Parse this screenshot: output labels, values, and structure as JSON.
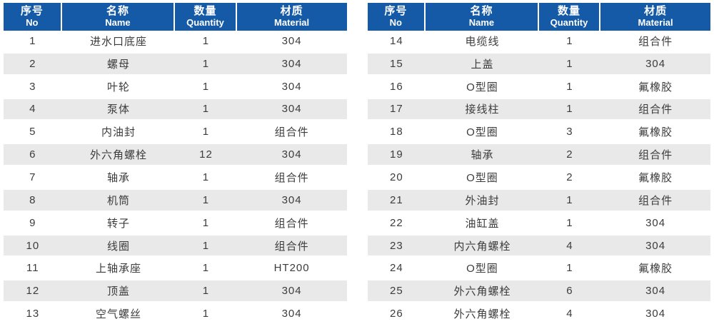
{
  "columns": [
    {
      "zh": "序号",
      "en": "No"
    },
    {
      "zh": "名称",
      "en": "Name"
    },
    {
      "zh": "数量",
      "en": "Quantity"
    },
    {
      "zh": "材质",
      "en": "Material"
    }
  ],
  "tables": {
    "left": {
      "rows": [
        [
          "1",
          "进水口底座",
          "1",
          "304"
        ],
        [
          "2",
          "螺母",
          "1",
          "304"
        ],
        [
          "3",
          "叶轮",
          "1",
          "304"
        ],
        [
          "4",
          "泵体",
          "1",
          "304"
        ],
        [
          "5",
          "内油封",
          "1",
          "组合件"
        ],
        [
          "6",
          "外六角螺栓",
          "12",
          "304"
        ],
        [
          "7",
          "轴承",
          "1",
          "组合件"
        ],
        [
          "8",
          "机筒",
          "1",
          "304"
        ],
        [
          "9",
          "转子",
          "1",
          "组合件"
        ],
        [
          "10",
          "线圈",
          "1",
          "组合件"
        ],
        [
          "11",
          "上轴承座",
          "1",
          "HT200"
        ],
        [
          "12",
          "顶盖",
          "1",
          "304"
        ],
        [
          "13",
          "空气螺丝",
          "1",
          "304"
        ]
      ]
    },
    "right": {
      "rows": [
        [
          "14",
          "电缆线",
          "1",
          "组合件"
        ],
        [
          "15",
          "上盖",
          "1",
          "304"
        ],
        [
          "16",
          "O型圈",
          "1",
          "氟橡胶"
        ],
        [
          "17",
          "接线柱",
          "1",
          "组合件"
        ],
        [
          "18",
          "O型圈",
          "3",
          "氟橡胶"
        ],
        [
          "19",
          "轴承",
          "2",
          "组合件"
        ],
        [
          "20",
          "O型圈",
          "2",
          "氟橡胶"
        ],
        [
          "21",
          "外油封",
          "1",
          "组合件"
        ],
        [
          "22",
          "油缸盖",
          "1",
          "304"
        ],
        [
          "23",
          "内六角螺栓",
          "4",
          "304"
        ],
        [
          "24",
          "O型圈",
          "1",
          "氟橡胶"
        ],
        [
          "25",
          "外六角螺栓",
          "6",
          "304"
        ],
        [
          "26",
          "外六角螺栓",
          "4",
          "304"
        ]
      ]
    }
  },
  "colors": {
    "header_bg": "#155AA6",
    "header_text": "#FFFFFF",
    "stripe_bg": "#E9E9E9",
    "body_text": "#3C3C3C"
  }
}
